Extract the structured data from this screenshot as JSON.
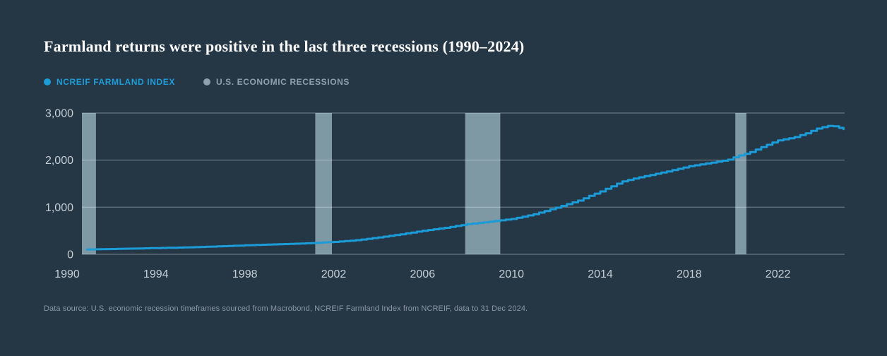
{
  "page": {
    "background": "#253745"
  },
  "header": {
    "title": "Farmland returns were positive in the last three recessions (1990–2024)"
  },
  "legend": [
    {
      "label": "NCREIF FARMLAND INDEX",
      "color": "#1f9dd9"
    },
    {
      "label": "U.S. ECONOMIC RECESSIONS",
      "color": "#8da0ab"
    }
  ],
  "footnote": "Data source: U.S. economic recession timeframes sourced from Macrobond, NCREIF Farmland Index from NCREIF, data to 31 Dec 2024.",
  "chart_data": {
    "type": "line",
    "title": "Farmland returns were positive in the last three recessions (1990–2024)",
    "xlabel": "",
    "ylabel": "",
    "xlim": [
      1990.667,
      2025.0
    ],
    "ylim": [
      0,
      3000
    ],
    "x_ticks": [
      1990,
      1994,
      1998,
      2002,
      2006,
      2010,
      2014,
      2018,
      2022
    ],
    "y_ticks": [
      0,
      1000,
      2000,
      3000
    ],
    "y_tick_labels": [
      "0",
      "1,000",
      "2,000",
      "3,000"
    ],
    "grid": "horizontal",
    "gridline_color": "rgba(255,255,255,0.38)",
    "axis_label_color": "#c6ced5",
    "legend_position": "top-left",
    "recessions": {
      "name": "U.S. economic recessions",
      "color": "#7e99a3",
      "periods": [
        [
          1990.5,
          1991.3
        ],
        [
          2001.17,
          2001.92
        ],
        [
          2007.92,
          2009.5
        ],
        [
          2020.08,
          2020.58
        ]
      ]
    },
    "series": [
      {
        "name": "NCREIF Farmland Index",
        "color": "#1b9cd8",
        "line_width": 3,
        "step": true,
        "points": [
          [
            1990.9,
            100
          ],
          [
            1991,
            103
          ],
          [
            1991.25,
            106
          ],
          [
            1991.5,
            109
          ],
          [
            1991.75,
            111
          ],
          [
            1992,
            113
          ],
          [
            1992.25,
            115
          ],
          [
            1992.5,
            118
          ],
          [
            1992.75,
            120
          ],
          [
            1993,
            122
          ],
          [
            1993.25,
            125
          ],
          [
            1993.5,
            127
          ],
          [
            1993.75,
            130
          ],
          [
            1994,
            132
          ],
          [
            1994.25,
            135
          ],
          [
            1994.5,
            138
          ],
          [
            1994.75,
            140
          ],
          [
            1995,
            143
          ],
          [
            1995.25,
            146
          ],
          [
            1995.5,
            149
          ],
          [
            1995.75,
            152
          ],
          [
            1996,
            156
          ],
          [
            1996.25,
            160
          ],
          [
            1996.5,
            164
          ],
          [
            1996.75,
            168
          ],
          [
            1997,
            172
          ],
          [
            1997.25,
            176
          ],
          [
            1997.5,
            181
          ],
          [
            1997.75,
            185
          ],
          [
            1998,
            190
          ],
          [
            1998.25,
            194
          ],
          [
            1998.5,
            198
          ],
          [
            1998.75,
            202
          ],
          [
            1999,
            206
          ],
          [
            1999.25,
            210
          ],
          [
            1999.5,
            214
          ],
          [
            1999.75,
            217
          ],
          [
            2000,
            221
          ],
          [
            2000.25,
            225
          ],
          [
            2000.5,
            229
          ],
          [
            2000.75,
            234
          ],
          [
            2001,
            238
          ],
          [
            2001.25,
            244
          ],
          [
            2001.5,
            250
          ],
          [
            2001.75,
            256
          ],
          [
            2002,
            262
          ],
          [
            2002.25,
            271
          ],
          [
            2002.5,
            280
          ],
          [
            2002.75,
            290
          ],
          [
            2003,
            300
          ],
          [
            2003.25,
            314
          ],
          [
            2003.5,
            328
          ],
          [
            2003.75,
            343
          ],
          [
            2004,
            358
          ],
          [
            2004.25,
            375
          ],
          [
            2004.5,
            391
          ],
          [
            2004.75,
            408
          ],
          [
            2005,
            425
          ],
          [
            2005.25,
            444
          ],
          [
            2005.5,
            462
          ],
          [
            2005.75,
            481
          ],
          [
            2006,
            500
          ],
          [
            2006.25,
            516
          ],
          [
            2006.5,
            531
          ],
          [
            2006.75,
            547
          ],
          [
            2007,
            562
          ],
          [
            2007.25,
            581
          ],
          [
            2007.5,
            601
          ],
          [
            2007.75,
            620
          ],
          [
            2008,
            640
          ],
          [
            2008.25,
            653
          ],
          [
            2008.5,
            666
          ],
          [
            2008.75,
            679
          ],
          [
            2009,
            692
          ],
          [
            2009.25,
            707
          ],
          [
            2009.5,
            721
          ],
          [
            2009.75,
            736
          ],
          [
            2010,
            750
          ],
          [
            2010.25,
            775
          ],
          [
            2010.5,
            800
          ],
          [
            2010.75,
            825
          ],
          [
            2011,
            850
          ],
          [
            2011.25,
            885
          ],
          [
            2011.5,
            920
          ],
          [
            2011.75,
            955
          ],
          [
            2012,
            990
          ],
          [
            2012.25,
            1028
          ],
          [
            2012.5,
            1065
          ],
          [
            2012.75,
            1103
          ],
          [
            2013,
            1140
          ],
          [
            2013.25,
            1190
          ],
          [
            2013.5,
            1240
          ],
          [
            2013.75,
            1288
          ],
          [
            2014,
            1335
          ],
          [
            2014.25,
            1390
          ],
          [
            2014.5,
            1445
          ],
          [
            2014.75,
            1500
          ],
          [
            2015,
            1550
          ],
          [
            2015.25,
            1580
          ],
          [
            2015.5,
            1608
          ],
          [
            2015.75,
            1635
          ],
          [
            2016,
            1660
          ],
          [
            2016.25,
            1685
          ],
          [
            2016.5,
            1710
          ],
          [
            2016.75,
            1735
          ],
          [
            2017,
            1760
          ],
          [
            2017.25,
            1788
          ],
          [
            2017.5,
            1815
          ],
          [
            2017.75,
            1843
          ],
          [
            2018,
            1870
          ],
          [
            2018.25,
            1890
          ],
          [
            2018.5,
            1908
          ],
          [
            2018.75,
            1927
          ],
          [
            2019,
            1945
          ],
          [
            2019.25,
            1967
          ],
          [
            2019.5,
            1988
          ],
          [
            2019.75,
            2010
          ],
          [
            2020,
            2060
          ],
          [
            2020.25,
            2100
          ],
          [
            2020.5,
            2135
          ],
          [
            2020.75,
            2170
          ],
          [
            2021,
            2225
          ],
          [
            2021.25,
            2275
          ],
          [
            2021.5,
            2325
          ],
          [
            2021.75,
            2375
          ],
          [
            2022,
            2420
          ],
          [
            2022.25,
            2440
          ],
          [
            2022.5,
            2465
          ],
          [
            2022.75,
            2490
          ],
          [
            2023,
            2530
          ],
          [
            2023.25,
            2570
          ],
          [
            2023.5,
            2620
          ],
          [
            2023.75,
            2670
          ],
          [
            2024,
            2700
          ],
          [
            2024.25,
            2725
          ],
          [
            2024.5,
            2720
          ],
          [
            2024.75,
            2685
          ],
          [
            2024.95,
            2660
          ]
        ]
      }
    ]
  }
}
